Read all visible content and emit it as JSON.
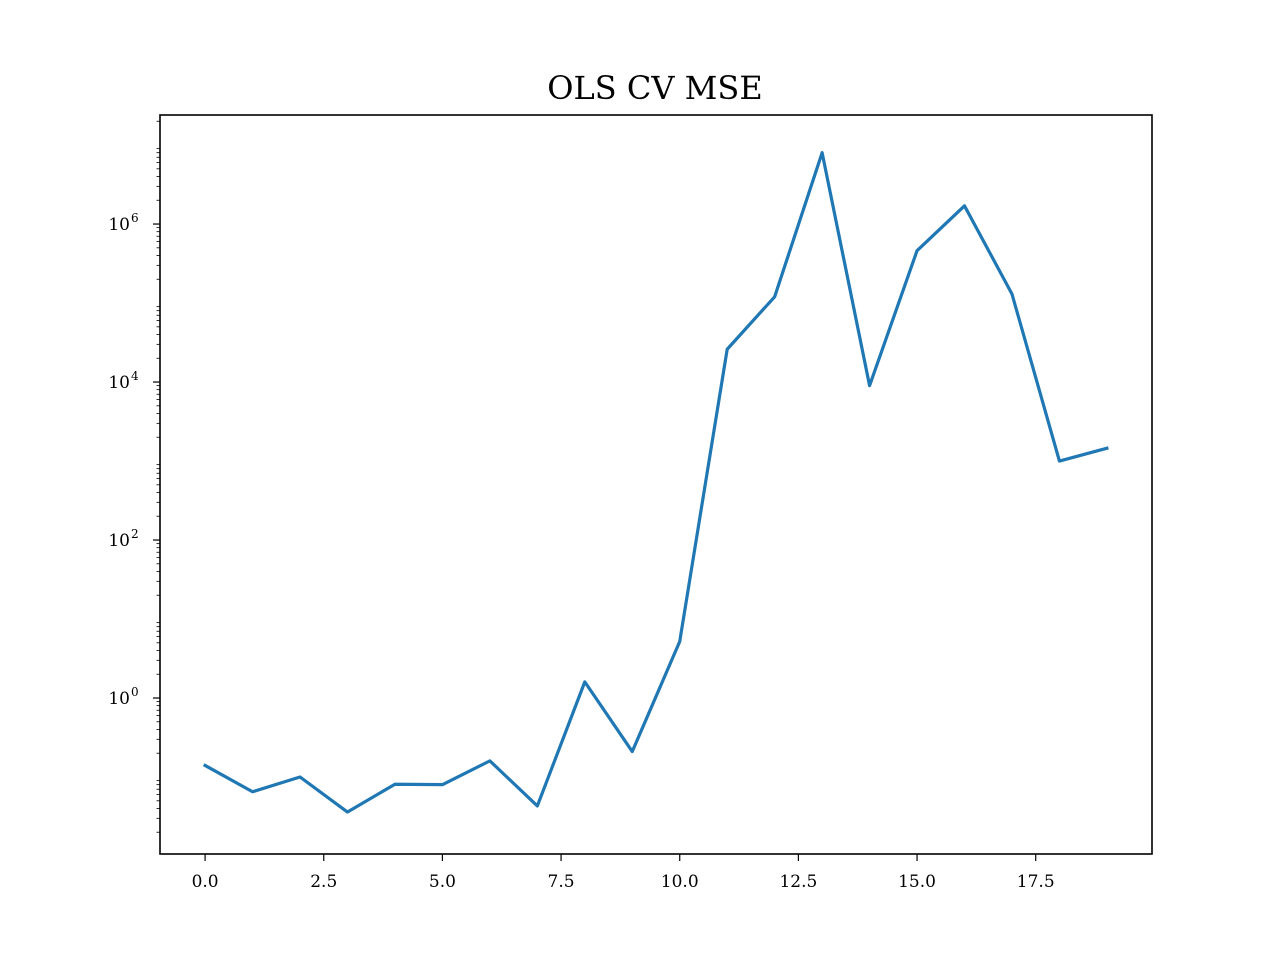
{
  "chart_data": {
    "type": "line",
    "title": "OLS CV MSE",
    "xlabel": "",
    "ylabel": "",
    "y_scale": "log",
    "xlim": [
      -0.95,
      19.95
    ],
    "ylim": [
      0.0106,
      24000000
    ],
    "grid": false,
    "x_ticks": [
      "0.0",
      "2.5",
      "5.0",
      "7.5",
      "10.0",
      "12.5",
      "15.0",
      "17.5"
    ],
    "y_ticks": [
      "10^0",
      "10^2",
      "10^4",
      "10^6"
    ],
    "series": [
      {
        "color": "#1f77b4",
        "x": [
          0,
          1,
          2,
          3,
          4,
          5,
          6,
          7,
          8,
          9,
          10,
          11,
          12,
          13,
          14,
          15,
          16,
          17,
          18,
          19
        ],
        "y": [
          0.14,
          0.065,
          0.1,
          0.036,
          0.081,
          0.08,
          0.16,
          0.043,
          1.6,
          0.21,
          5.2,
          26000,
          120000,
          8000000,
          9000,
          460000,
          1700000,
          130000,
          1000,
          1450
        ]
      }
    ]
  }
}
